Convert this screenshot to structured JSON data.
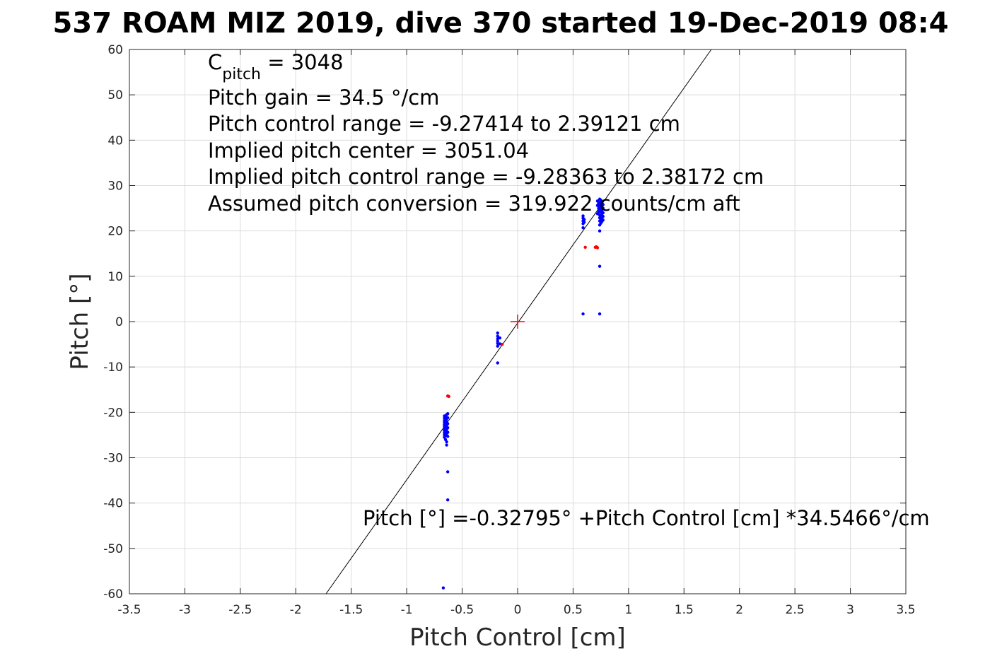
{
  "chart_data": {
    "type": "scatter",
    "title": "537 ROAM MIZ 2019, dive 370 started 19-Dec-2019 08:4",
    "xlabel": "Pitch Control [cm]",
    "ylabel": "Pitch [°]",
    "xlim": [
      -3.5,
      3.5
    ],
    "ylim": [
      -60,
      60
    ],
    "x_ticks": [
      -3.5,
      -3,
      -2.5,
      -2,
      -1.5,
      -1,
      -0.5,
      0,
      0.5,
      1,
      1.5,
      2,
      2.5,
      3,
      3.5
    ],
    "y_ticks": [
      -60,
      -50,
      -40,
      -30,
      -20,
      -10,
      0,
      10,
      20,
      30,
      40,
      50,
      60
    ],
    "grid": true,
    "annotations": {
      "cpitch_symbol": "C",
      "cpitch_subscript": "pitch",
      "cpitch_rest": " = 3048",
      "gain": "Pitch gain = 34.5 °/cm",
      "range": "Pitch control range = -9.27414 to 2.39121 cm",
      "center": "Implied pitch center = 3051.04",
      "implied_range": "Implied pitch control range = -9.28363 to 2.38172 cm",
      "conversion": "Assumed pitch conversion = 319.922 counts/cm aft",
      "fit_equation": "Pitch [°] =-0.32795° +Pitch Control [cm] *34.5466°/cm"
    },
    "fit_line": {
      "intercept": -0.32795,
      "slope": 34.5466,
      "color": "#000000"
    },
    "center_marker": {
      "x": 0,
      "y": 0,
      "color": "#ff0000"
    },
    "series": [
      {
        "color": "#0000ff",
        "points": [
          [
            -0.66,
            -20.8
          ],
          [
            -0.66,
            -21.3
          ],
          [
            -0.66,
            -21.8
          ],
          [
            -0.66,
            -22.2
          ],
          [
            -0.66,
            -22.7
          ],
          [
            -0.66,
            -23.1
          ],
          [
            -0.66,
            -23.6
          ],
          [
            -0.66,
            -24.0
          ],
          [
            -0.66,
            -24.5
          ],
          [
            -0.66,
            -25.0
          ],
          [
            -0.66,
            -25.5
          ],
          [
            -0.65,
            -21.0
          ],
          [
            -0.65,
            -21.6
          ],
          [
            -0.65,
            -22.4
          ],
          [
            -0.65,
            -23.3
          ],
          [
            -0.65,
            -24.2
          ],
          [
            -0.65,
            -25.1
          ],
          [
            -0.65,
            -26.0
          ],
          [
            -0.64,
            -20.5
          ],
          [
            -0.64,
            -21.4
          ],
          [
            -0.64,
            -22.0
          ],
          [
            -0.64,
            -22.9
          ],
          [
            -0.64,
            -23.8
          ],
          [
            -0.64,
            -24.7
          ],
          [
            -0.64,
            -26.5
          ],
          [
            -0.64,
            -27.2
          ],
          [
            -0.63,
            -20.3
          ],
          [
            -0.63,
            -21.2
          ],
          [
            -0.63,
            -22.5
          ],
          [
            -0.63,
            -23.4
          ],
          [
            -0.63,
            -24.4
          ],
          [
            -0.63,
            -25.3
          ],
          [
            -0.63,
            -33.1
          ],
          [
            -0.63,
            -39.3
          ],
          [
            -0.67,
            -58.7
          ],
          [
            -0.18,
            -2.5
          ],
          [
            -0.18,
            -3.2
          ],
          [
            -0.18,
            -3.8
          ],
          [
            -0.18,
            -4.3
          ],
          [
            -0.18,
            -4.8
          ],
          [
            -0.18,
            -5.4
          ],
          [
            -0.18,
            -9.1
          ],
          [
            -0.16,
            -4.9
          ],
          [
            -0.16,
            -3.6
          ],
          [
            0.59,
            20.7
          ],
          [
            0.59,
            21.6
          ],
          [
            0.59,
            22.2
          ],
          [
            0.59,
            22.8
          ],
          [
            0.59,
            23.3
          ],
          [
            0.59,
            1.7
          ],
          [
            0.6,
            21.9
          ],
          [
            0.6,
            22.5
          ],
          [
            0.72,
            23.8
          ],
          [
            0.72,
            25.6
          ],
          [
            0.72,
            26.6
          ],
          [
            0.73,
            24.4
          ],
          [
            0.73,
            25.0
          ],
          [
            0.73,
            26.1
          ],
          [
            0.74,
            21.3
          ],
          [
            0.74,
            22.2
          ],
          [
            0.74,
            22.9
          ],
          [
            0.74,
            23.5
          ],
          [
            0.74,
            24.2
          ],
          [
            0.74,
            24.9
          ],
          [
            0.74,
            25.6
          ],
          [
            0.74,
            26.3
          ],
          [
            0.74,
            27.0
          ],
          [
            0.74,
            20.0
          ],
          [
            0.75,
            21.7
          ],
          [
            0.75,
            22.6
          ],
          [
            0.75,
            23.4
          ],
          [
            0.75,
            24.3
          ],
          [
            0.75,
            25.2
          ],
          [
            0.75,
            26.0
          ],
          [
            0.75,
            26.8
          ],
          [
            0.76,
            22.1
          ],
          [
            0.76,
            22.9
          ],
          [
            0.76,
            23.7
          ],
          [
            0.76,
            24.6
          ],
          [
            0.76,
            25.3
          ],
          [
            0.76,
            26.2
          ],
          [
            0.77,
            22.4
          ],
          [
            0.77,
            23.2
          ],
          [
            0.77,
            24.0
          ],
          [
            0.77,
            25.0
          ],
          [
            0.77,
            25.8
          ],
          [
            0.74,
            12.2
          ],
          [
            0.74,
            1.7
          ]
        ]
      },
      {
        "color": "#ff0000",
        "points": [
          [
            -0.62,
            -16.5
          ],
          [
            -0.63,
            -16.4
          ],
          [
            -0.14,
            -5.0
          ],
          [
            0.61,
            16.4
          ],
          [
            0.7,
            16.4
          ],
          [
            0.71,
            16.5
          ],
          [
            0.72,
            16.3
          ]
        ]
      }
    ]
  }
}
